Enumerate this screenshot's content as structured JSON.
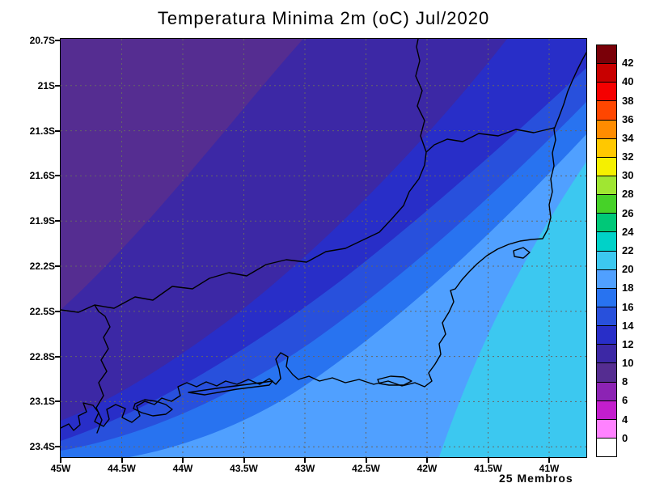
{
  "title": "Temperatura Minima 2m (oC) Jul/2020",
  "footer_note": "25 Membros",
  "axes": {
    "y_ticks": [
      "20.7S",
      "21S",
      "21.3S",
      "21.6S",
      "21.9S",
      "22.2S",
      "22.5S",
      "22.8S",
      "23.1S",
      "23.4S"
    ],
    "x_ticks": [
      "45W",
      "44.5W",
      "44W",
      "43.5W",
      "43W",
      "42.5W",
      "42W",
      "41.5W",
      "41W"
    ]
  },
  "colorbar": {
    "labels_top_to_bottom": [
      "42",
      "40",
      "38",
      "36",
      "34",
      "32",
      "30",
      "28",
      "26",
      "24",
      "22",
      "20",
      "18",
      "16",
      "14",
      "12",
      "10",
      "8",
      "6",
      "4",
      "0"
    ],
    "segment_colors_top_to_bottom": [
      "#7a0008",
      "#c80000",
      "#f50000",
      "#ff4600",
      "#ff8c00",
      "#ffc800",
      "#f5f000",
      "#a0e632",
      "#46d228",
      "#00c878",
      "#00d2c8",
      "#3cc8f0",
      "#50a0ff",
      "#2873f0",
      "#2850dc",
      "#282ec8",
      "#3c28a5",
      "#552d91",
      "#8c23b4",
      "#c31ecd",
      "#ff82ff",
      "#ffffff"
    ]
  },
  "map": {
    "outline_color": "#000000",
    "grid_color": "#666666",
    "band_colors": {
      "c10_12": "#552d91",
      "c12_14": "#3c28a5",
      "c14_16": "#282ec8",
      "c16_18": "#2850dc",
      "c18_20": "#2873f0",
      "c20_22": "#50a0ff",
      "c22_24": "#3cc8f0"
    }
  },
  "chart_data": {
    "type": "heatmap",
    "title": "Temperatura Minima 2m (oC) Jul/2020",
    "subtitle": "25 Membros",
    "units": "oC",
    "x_tick_labels": [
      "45W",
      "44.5W",
      "44W",
      "43.5W",
      "43W",
      "42.5W",
      "42W",
      "41.5W",
      "41W"
    ],
    "y_tick_labels": [
      "20.7S",
      "21S",
      "21.3S",
      "21.6S",
      "21.9S",
      "22.2S",
      "22.5S",
      "22.8S",
      "23.1S",
      "23.4S"
    ],
    "colorbar_levels": [
      42,
      40,
      38,
      36,
      34,
      32,
      30,
      28,
      26,
      24,
      22,
      20,
      18,
      16,
      14,
      12,
      10,
      8,
      6,
      4,
      0
    ],
    "legend_position": "right-vertical-colorbar",
    "grid": "dotted",
    "field_regions": [
      {
        "region": "northwest interior highlands (upper-left)",
        "approx_value_c": [
          10,
          12
        ]
      },
      {
        "region": "north-central interior",
        "approx_value_c": [
          12,
          14
        ]
      },
      {
        "region": "central interior band",
        "approx_value_c": [
          14,
          16
        ]
      },
      {
        "region": "eastern lowlands / pre-coastal band",
        "approx_value_c": [
          16,
          18
        ]
      },
      {
        "region": "coastal strip (Rio de Janeiro coast)",
        "approx_value_c": [
          18,
          20
        ]
      },
      {
        "region": "nearshore ocean / south coast",
        "approx_value_c": [
          20,
          22
        ]
      },
      {
        "region": "open ocean east and southeast",
        "approx_value_c": [
          22,
          24
        ]
      }
    ]
  }
}
